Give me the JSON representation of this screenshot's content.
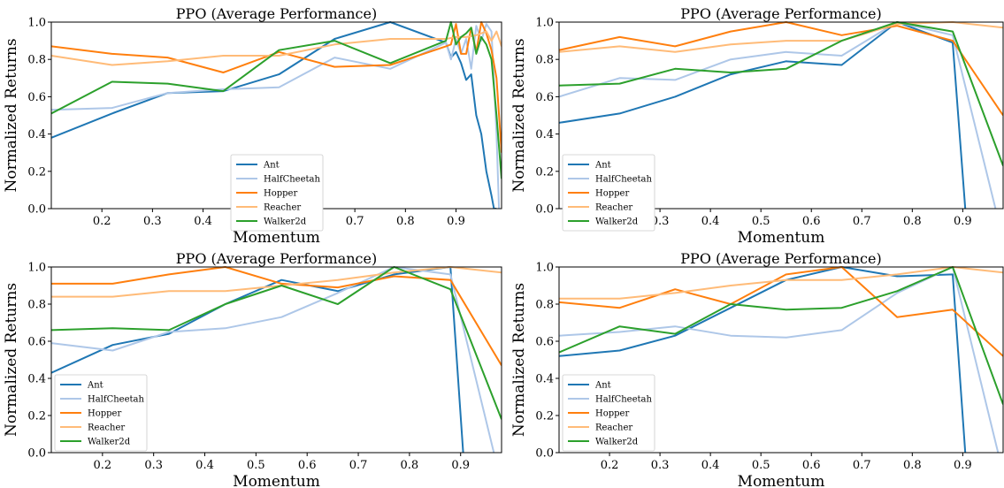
{
  "colors": {
    "Ant": "#1f77b4",
    "HalfCheetah": "#aec7e8",
    "Hopper": "#ff7f0e",
    "Reacher": "#ffbb78",
    "Walker2d": "#2ca02c"
  },
  "chart_data": [
    {
      "type": "line",
      "title": "PPO (Average Performance)",
      "xlabel": "Momentum",
      "ylabel": "Normalized Returns",
      "xlim": [
        0.1,
        0.99
      ],
      "ylim": [
        0.0,
        1.0
      ],
      "xticks": [
        "0.2",
        "0.3",
        "0.4",
        "0.5",
        "0.6",
        "0.7",
        "0.8",
        "0.9"
      ],
      "yticks": [
        "0.0",
        "0.2",
        "0.4",
        "0.6",
        "0.8",
        "1.0"
      ],
      "grid": false,
      "legend": "lower-center",
      "series": [
        {
          "name": "Ant",
          "x": [
            0.1,
            0.22,
            0.33,
            0.44,
            0.55,
            0.66,
            0.77,
            0.88,
            0.89,
            0.9,
            0.91,
            0.92,
            0.93,
            0.94,
            0.95,
            0.96,
            0.97,
            0.975,
            0.98
          ],
          "y": [
            0.38,
            0.51,
            0.62,
            0.63,
            0.72,
            0.91,
            1.0,
            0.89,
            0.81,
            0.84,
            0.78,
            0.69,
            0.72,
            0.5,
            0.4,
            0.2,
            0.07,
            0.0,
            0.0
          ]
        },
        {
          "name": "HalfCheetah",
          "x": [
            0.1,
            0.22,
            0.33,
            0.44,
            0.55,
            0.66,
            0.77,
            0.88,
            0.89,
            0.9,
            0.91,
            0.92,
            0.93,
            0.94,
            0.95,
            0.96,
            0.97,
            0.98,
            0.985
          ],
          "y": [
            0.53,
            0.54,
            0.62,
            0.64,
            0.65,
            0.81,
            0.75,
            0.89,
            0.8,
            0.91,
            0.83,
            0.91,
            0.75,
            0.98,
            0.9,
            0.99,
            0.95,
            0.4,
            0.0
          ]
        },
        {
          "name": "Hopper",
          "x": [
            0.1,
            0.22,
            0.33,
            0.44,
            0.55,
            0.66,
            0.77,
            0.88,
            0.89,
            0.9,
            0.91,
            0.92,
            0.93,
            0.94,
            0.95,
            0.96,
            0.97,
            0.98,
            0.99
          ],
          "y": [
            0.87,
            0.83,
            0.81,
            0.73,
            0.84,
            0.76,
            0.77,
            0.87,
            0.88,
            0.99,
            0.83,
            0.83,
            0.97,
            0.84,
            1.0,
            0.94,
            0.85,
            0.7,
            0.3
          ]
        },
        {
          "name": "Reacher",
          "x": [
            0.1,
            0.22,
            0.33,
            0.44,
            0.55,
            0.66,
            0.77,
            0.88,
            0.9,
            0.92,
            0.94,
            0.96,
            0.97,
            0.98,
            0.99
          ],
          "y": [
            0.82,
            0.77,
            0.79,
            0.82,
            0.82,
            0.88,
            0.91,
            0.91,
            0.92,
            0.92,
            0.93,
            0.95,
            0.9,
            0.95,
            0.87
          ]
        },
        {
          "name": "Walker2d",
          "x": [
            0.1,
            0.22,
            0.33,
            0.44,
            0.55,
            0.66,
            0.77,
            0.88,
            0.89,
            0.9,
            0.91,
            0.92,
            0.93,
            0.94,
            0.95,
            0.96,
            0.97,
            0.98,
            0.99
          ],
          "y": [
            0.51,
            0.68,
            0.67,
            0.63,
            0.85,
            0.9,
            0.78,
            0.9,
            1.0,
            0.88,
            0.92,
            0.94,
            0.97,
            0.83,
            0.92,
            0.88,
            0.8,
            0.5,
            0.16
          ]
        }
      ]
    },
    {
      "type": "line",
      "title": "PPO (Average Performance)",
      "xlabel": "Momentum",
      "ylabel": "Normalized Returns",
      "xlim": [
        0.1,
        0.98
      ],
      "ylim": [
        0.0,
        1.0
      ],
      "xticks": [
        "0.2",
        "0.3",
        "0.4",
        "0.5",
        "0.6",
        "0.7",
        "0.8",
        "0.9"
      ],
      "yticks": [
        "0.0",
        "0.2",
        "0.4",
        "0.6",
        "0.8",
        "1.0"
      ],
      "grid": false,
      "legend": "lower-left",
      "series": [
        {
          "name": "Ant",
          "x": [
            0.1,
            0.22,
            0.33,
            0.44,
            0.55,
            0.66,
            0.77,
            0.88,
            0.905
          ],
          "y": [
            0.46,
            0.51,
            0.6,
            0.72,
            0.79,
            0.77,
            1.0,
            0.89,
            0.0
          ]
        },
        {
          "name": "HalfCheetah",
          "x": [
            0.1,
            0.22,
            0.33,
            0.44,
            0.55,
            0.66,
            0.77,
            0.88,
            0.965
          ],
          "y": [
            0.6,
            0.7,
            0.69,
            0.8,
            0.84,
            0.82,
            1.0,
            0.93,
            0.0
          ]
        },
        {
          "name": "Hopper",
          "x": [
            0.1,
            0.22,
            0.33,
            0.44,
            0.55,
            0.66,
            0.77,
            0.88,
            0.98
          ],
          "y": [
            0.85,
            0.92,
            0.87,
            0.95,
            1.0,
            0.93,
            0.98,
            0.9,
            0.5
          ]
        },
        {
          "name": "Reacher",
          "x": [
            0.1,
            0.22,
            0.33,
            0.44,
            0.55,
            0.66,
            0.77,
            0.88,
            0.98
          ],
          "y": [
            0.84,
            0.87,
            0.84,
            0.88,
            0.9,
            0.9,
            0.99,
            1.0,
            0.97
          ]
        },
        {
          "name": "Walker2d",
          "x": [
            0.1,
            0.22,
            0.33,
            0.44,
            0.55,
            0.66,
            0.77,
            0.88,
            0.98
          ],
          "y": [
            0.66,
            0.67,
            0.75,
            0.73,
            0.75,
            0.9,
            1.0,
            0.95,
            0.23
          ]
        }
      ]
    },
    {
      "type": "line",
      "title": "PPO (Average Performance)",
      "xlabel": "Momentum",
      "ylabel": "Normalized Returns",
      "xlim": [
        0.1,
        0.98
      ],
      "ylim": [
        0.0,
        1.0
      ],
      "xticks": [
        "0.2",
        "0.3",
        "0.4",
        "0.5",
        "0.6",
        "0.7",
        "0.8",
        "0.9"
      ],
      "yticks": [
        "0.0",
        "0.2",
        "0.4",
        "0.6",
        "0.8",
        "1.0"
      ],
      "grid": false,
      "legend": "lower-left",
      "series": [
        {
          "name": "Ant",
          "x": [
            0.1,
            0.22,
            0.33,
            0.44,
            0.55,
            0.66,
            0.77,
            0.88,
            0.905
          ],
          "y": [
            0.43,
            0.58,
            0.64,
            0.8,
            0.93,
            0.87,
            0.96,
            1.0,
            0.0
          ]
        },
        {
          "name": "HalfCheetah",
          "x": [
            0.1,
            0.22,
            0.33,
            0.44,
            0.55,
            0.66,
            0.77,
            0.88,
            0.965
          ],
          "y": [
            0.59,
            0.55,
            0.65,
            0.67,
            0.73,
            0.86,
            1.0,
            0.96,
            0.0
          ]
        },
        {
          "name": "Hopper",
          "x": [
            0.1,
            0.22,
            0.33,
            0.44,
            0.55,
            0.66,
            0.77,
            0.88,
            0.98
          ],
          "y": [
            0.91,
            0.91,
            0.96,
            1.0,
            0.91,
            0.89,
            0.95,
            0.93,
            0.47
          ]
        },
        {
          "name": "Reacher",
          "x": [
            0.1,
            0.22,
            0.33,
            0.44,
            0.55,
            0.66,
            0.77,
            0.88,
            0.98
          ],
          "y": [
            0.84,
            0.84,
            0.87,
            0.87,
            0.9,
            0.93,
            0.97,
            1.0,
            0.97
          ]
        },
        {
          "name": "Walker2d",
          "x": [
            0.1,
            0.22,
            0.33,
            0.44,
            0.55,
            0.66,
            0.77,
            0.88,
            0.98
          ],
          "y": [
            0.66,
            0.67,
            0.66,
            0.8,
            0.9,
            0.8,
            1.0,
            0.88,
            0.18
          ]
        }
      ]
    },
    {
      "type": "line",
      "title": "PPO (Average Performance)",
      "xlabel": "Momentum",
      "ylabel": "Normalized Returns",
      "xlim": [
        0.1,
        0.98
      ],
      "ylim": [
        0.0,
        1.0
      ],
      "xticks": [
        "0.2",
        "0.3",
        "0.4",
        "0.5",
        "0.6",
        "0.7",
        "0.8",
        "0.9"
      ],
      "yticks": [
        "0.0",
        "0.2",
        "0.4",
        "0.6",
        "0.8",
        "1.0"
      ],
      "grid": false,
      "legend": "lower-left",
      "series": [
        {
          "name": "Ant",
          "x": [
            0.1,
            0.22,
            0.33,
            0.44,
            0.55,
            0.66,
            0.77,
            0.88,
            0.905
          ],
          "y": [
            0.52,
            0.55,
            0.63,
            0.78,
            0.93,
            1.0,
            0.95,
            0.96,
            0.0
          ]
        },
        {
          "name": "HalfCheetah",
          "x": [
            0.1,
            0.22,
            0.33,
            0.44,
            0.55,
            0.66,
            0.77,
            0.88,
            0.97
          ],
          "y": [
            0.63,
            0.65,
            0.68,
            0.63,
            0.62,
            0.66,
            0.86,
            1.0,
            0.0
          ]
        },
        {
          "name": "Hopper",
          "x": [
            0.1,
            0.22,
            0.33,
            0.44,
            0.55,
            0.66,
            0.77,
            0.88,
            0.98
          ],
          "y": [
            0.81,
            0.78,
            0.88,
            0.8,
            0.96,
            1.0,
            0.73,
            0.77,
            0.52
          ]
        },
        {
          "name": "Reacher",
          "x": [
            0.1,
            0.22,
            0.33,
            0.44,
            0.55,
            0.66,
            0.77,
            0.88,
            0.98
          ],
          "y": [
            0.83,
            0.83,
            0.86,
            0.9,
            0.93,
            0.93,
            0.96,
            1.0,
            0.97
          ]
        },
        {
          "name": "Walker2d",
          "x": [
            0.1,
            0.22,
            0.33,
            0.44,
            0.55,
            0.66,
            0.77,
            0.88,
            0.98
          ],
          "y": [
            0.54,
            0.68,
            0.64,
            0.8,
            0.77,
            0.78,
            0.87,
            1.0,
            0.26
          ]
        }
      ]
    }
  ]
}
